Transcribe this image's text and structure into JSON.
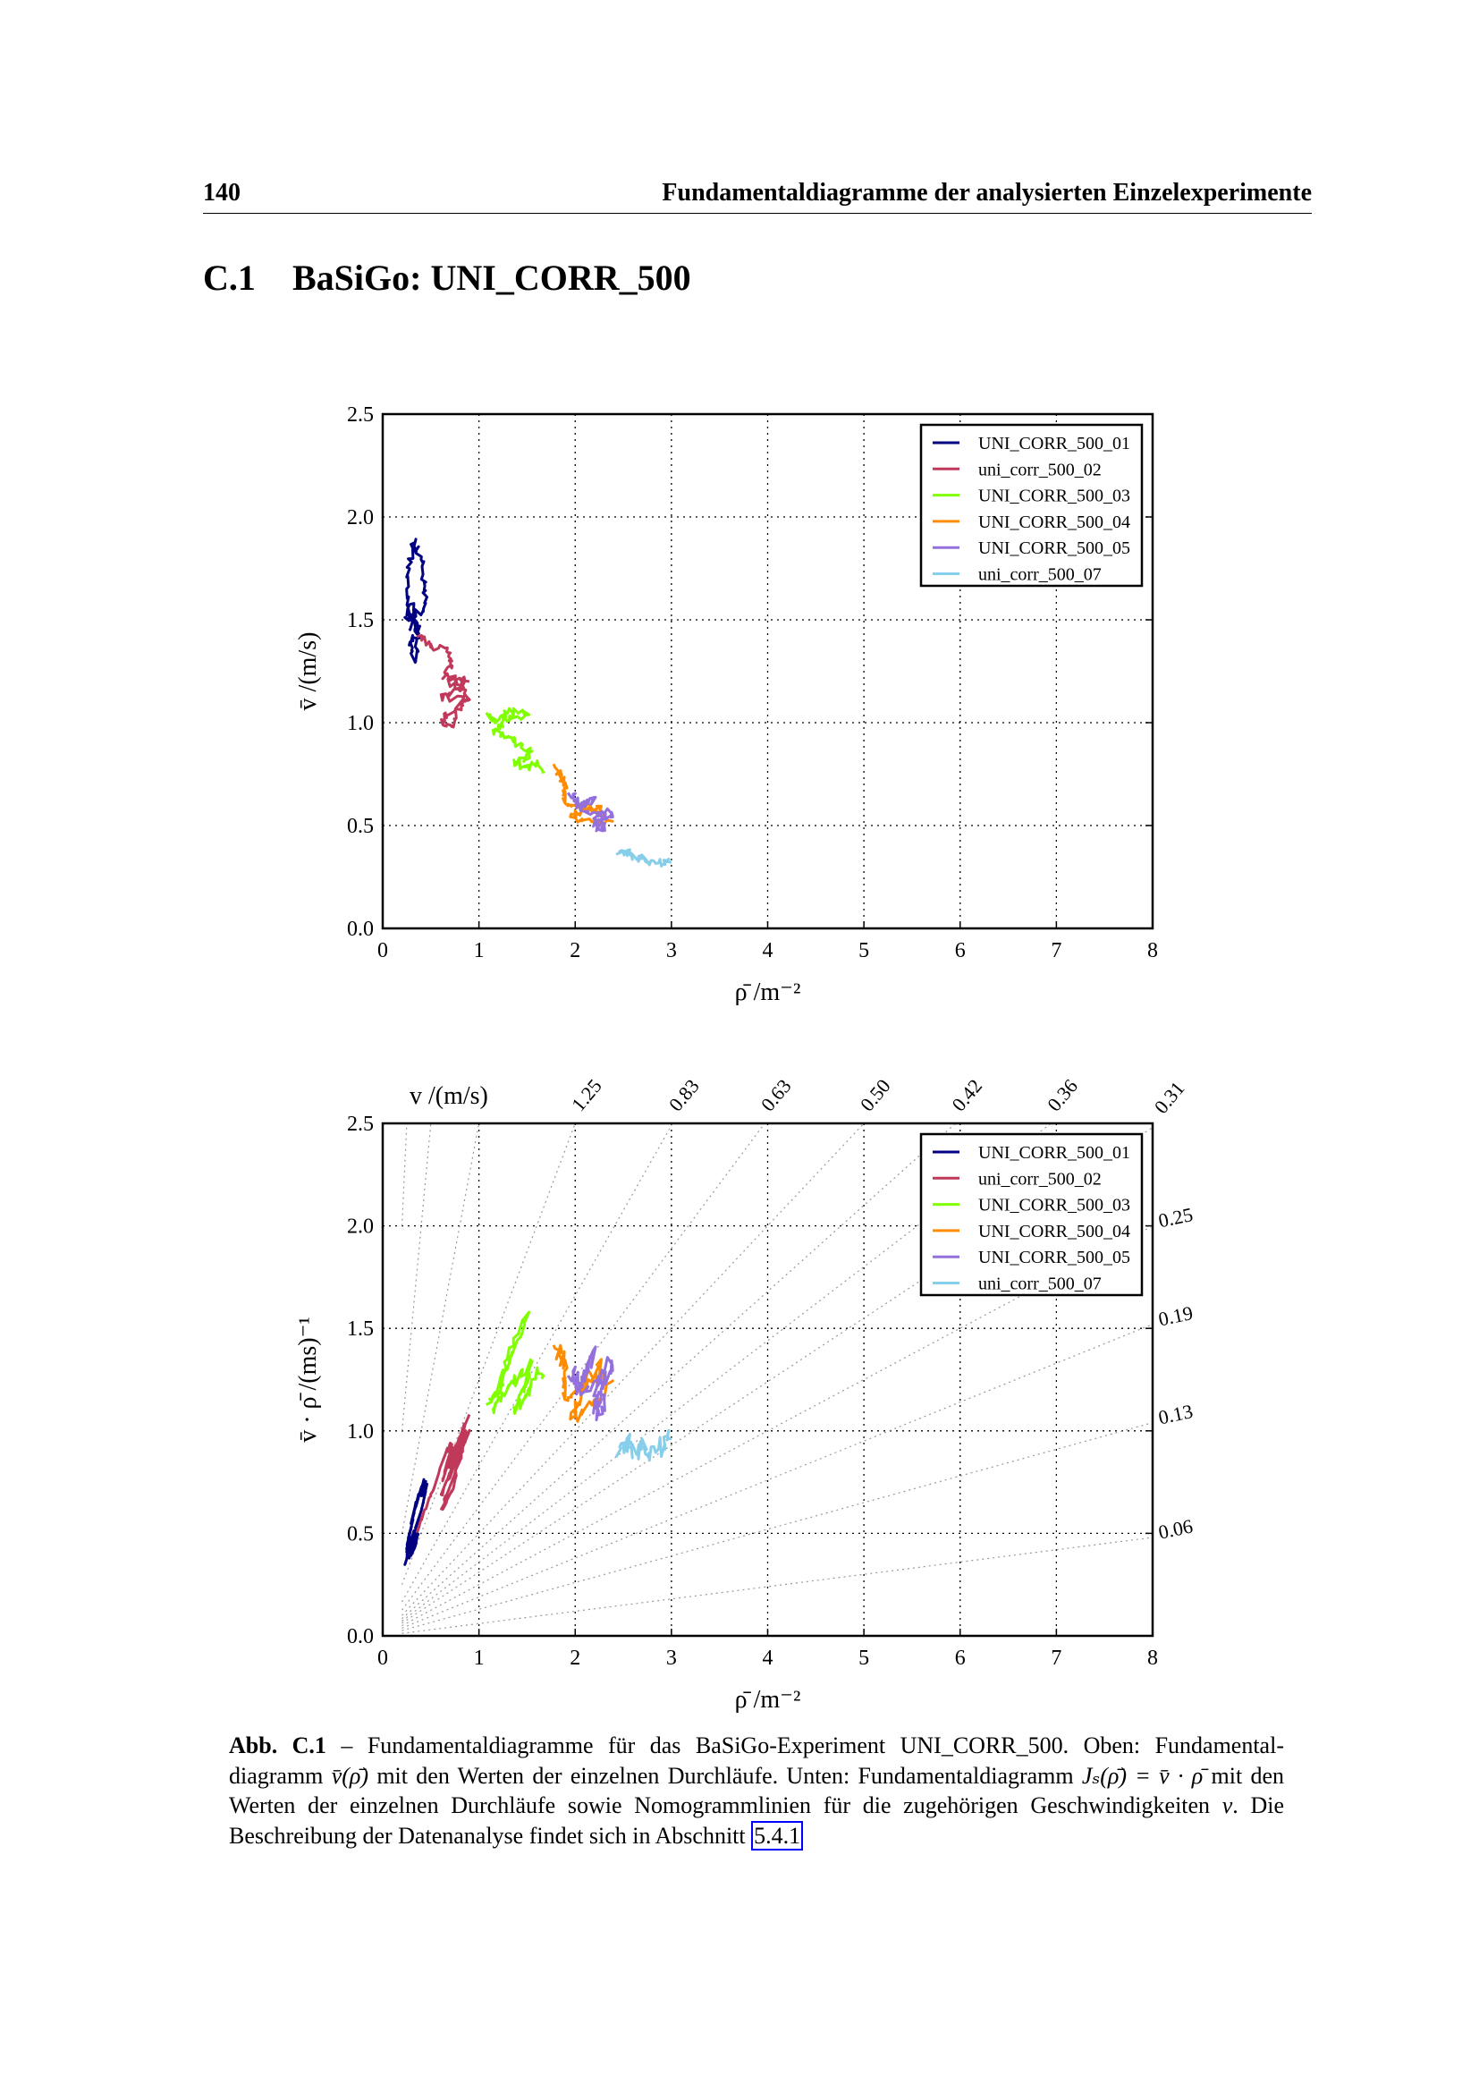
{
  "header": {
    "page_number": "140",
    "running_title": "Fundamentaldiagramme der analysierten Einzelexperimente"
  },
  "section": {
    "number": "C.1",
    "title": "BaSiGo: UNI_CORR_500"
  },
  "colors": {
    "UNI_CORR_500_01": "#000080",
    "uni_corr_500_02": "#c0395a",
    "UNI_CORR_500_03": "#7fff00",
    "UNI_CORR_500_04": "#ff8c00",
    "UNI_CORR_500_05": "#9370db",
    "uni_corr_500_07": "#87ceeb"
  },
  "chart_data": [
    {
      "type": "line",
      "title": "",
      "xlabel": "ρ̄   /m⁻²",
      "ylabel": "v̄   /(m/s)",
      "xlim": [
        0,
        8
      ],
      "ylim": [
        0,
        2.5
      ],
      "xticks": [
        "0",
        "1",
        "2",
        "3",
        "4",
        "5",
        "6",
        "7",
        "8"
      ],
      "yticks": [
        "0.0",
        "0.5",
        "1.0",
        "1.5",
        "2.0",
        "2.5"
      ],
      "grid": true,
      "legend_position": "top-right",
      "legend": [
        "UNI_CORR_500_01",
        "uni_corr_500_02",
        "UNI_CORR_500_03",
        "UNI_CORR_500_04",
        "UNI_CORR_500_05",
        "uni_corr_500_07"
      ],
      "series": [
        {
          "name": "UNI_CORR_500_01",
          "points": [
            [
              0.3,
              1.45
            ],
            [
              0.26,
              1.62
            ],
            [
              0.28,
              1.78
            ],
            [
              0.32,
              1.88
            ],
            [
              0.4,
              1.78
            ],
            [
              0.45,
              1.65
            ],
            [
              0.42,
              1.55
            ],
            [
              0.25,
              1.5
            ],
            [
              0.3,
              1.58
            ],
            [
              0.36,
              1.42
            ],
            [
              0.28,
              1.4
            ],
            [
              0.33,
              1.3
            ],
            [
              0.38,
              1.45
            ],
            [
              0.3,
              1.52
            ],
            [
              0.38,
              1.43
            ]
          ]
        },
        {
          "name": "uni_corr_500_02",
          "points": [
            [
              0.38,
              1.43
            ],
            [
              0.5,
              1.37
            ],
            [
              0.7,
              1.35
            ],
            [
              0.72,
              1.28
            ],
            [
              0.62,
              1.22
            ],
            [
              0.85,
              1.22
            ],
            [
              0.78,
              1.15
            ],
            [
              0.6,
              1.12
            ],
            [
              0.9,
              1.12
            ],
            [
              0.68,
              1.05
            ],
            [
              0.62,
              1.0
            ],
            [
              0.72,
              0.98
            ],
            [
              0.8,
              1.07
            ],
            [
              0.88,
              1.15
            ],
            [
              0.7,
              1.2
            ],
            [
              0.9,
              1.2
            ]
          ]
        },
        {
          "name": "UNI_CORR_500_03",
          "points": [
            [
              1.1,
              1.03
            ],
            [
              1.2,
              1.01
            ],
            [
              1.3,
              1.06
            ],
            [
              1.5,
              1.04
            ],
            [
              1.35,
              1.03
            ],
            [
              1.25,
              1.01
            ],
            [
              1.15,
              0.96
            ],
            [
              1.3,
              0.93
            ],
            [
              1.4,
              0.9
            ],
            [
              1.55,
              0.85
            ],
            [
              1.42,
              0.82
            ],
            [
              1.35,
              0.8
            ],
            [
              1.5,
              0.78
            ],
            [
              1.62,
              0.8
            ],
            [
              1.65,
              0.76
            ]
          ]
        },
        {
          "name": "UNI_CORR_500_04",
          "points": [
            [
              1.8,
              0.79
            ],
            [
              1.85,
              0.73
            ],
            [
              1.9,
              0.69
            ],
            [
              1.88,
              0.62
            ],
            [
              2.0,
              0.6
            ],
            [
              2.25,
              0.58
            ],
            [
              2.3,
              0.56
            ],
            [
              2.05,
              0.57
            ],
            [
              1.95,
              0.54
            ],
            [
              2.15,
              0.52
            ],
            [
              2.4,
              0.52
            ]
          ]
        },
        {
          "name": "UNI_CORR_500_05",
          "points": [
            [
              1.95,
              0.66
            ],
            [
              2.05,
              0.61
            ],
            [
              2.2,
              0.62
            ],
            [
              2.0,
              0.6
            ],
            [
              2.15,
              0.57
            ],
            [
              2.4,
              0.56
            ],
            [
              2.3,
              0.53
            ],
            [
              2.2,
              0.5
            ],
            [
              2.3,
              0.48
            ],
            [
              2.2,
              0.55
            ],
            [
              2.35,
              0.54
            ]
          ]
        },
        {
          "name": "uni_corr_500_07",
          "points": [
            [
              2.45,
              0.37
            ],
            [
              2.55,
              0.37
            ],
            [
              2.6,
              0.35
            ],
            [
              2.7,
              0.34
            ],
            [
              2.78,
              0.33
            ],
            [
              2.9,
              0.32
            ],
            [
              3.0,
              0.32
            ]
          ]
        }
      ]
    },
    {
      "type": "line",
      "title": "",
      "xlabel": "ρ̄   /m⁻²",
      "ylabel": "v̄ · ρ̄   /(ms)⁻¹",
      "top_label": "v   /(m/s)",
      "xlim": [
        0,
        8
      ],
      "ylim": [
        0,
        2.5
      ],
      "xticks": [
        "0",
        "1",
        "2",
        "3",
        "4",
        "5",
        "6",
        "7",
        "8"
      ],
      "yticks": [
        "0.0",
        "0.5",
        "1.0",
        "1.5",
        "2.0",
        "2.5"
      ],
      "grid": true,
      "legend_position": "top-right",
      "legend": [
        "UNI_CORR_500_01",
        "uni_corr_500_02",
        "UNI_CORR_500_03",
        "UNI_CORR_500_04",
        "UNI_CORR_500_05",
        "uni_corr_500_07"
      ],
      "nomogram": {
        "top_labels": [
          {
            "v": 1.25,
            "label": "1.25"
          },
          {
            "v": 0.83,
            "label": "0.83"
          },
          {
            "v": 0.63,
            "label": "0.63"
          },
          {
            "v": 0.5,
            "label": "0.50"
          },
          {
            "v": 0.42,
            "label": "0.42"
          },
          {
            "v": 0.36,
            "label": "0.36"
          },
          {
            "v": 0.31,
            "label": "0.31"
          }
        ],
        "right_labels": [
          {
            "v": 0.25,
            "label": "0.25"
          },
          {
            "v": 0.19,
            "label": "0.19"
          },
          {
            "v": 0.13,
            "label": "0.13"
          },
          {
            "v": 0.06,
            "label": "0.06"
          }
        ],
        "extra_lines_v": [
          2.5,
          5.0,
          10.0
        ]
      }
    }
  ],
  "caption": {
    "label": "Abb. C.1",
    "text1": " – Fundamentaldiagramme für das BaSiGo-Experiment UNI_CORR_500. Oben: Fundamental­diagramm ",
    "math1": "v̄(ρ̄)",
    "text2": " mit den Werten der einzelnen Durchläufe. Unten: Fundamentaldiagramm ",
    "math2": "Jₛ(ρ̄) = v̄ · ρ̄",
    "text3": " mit den Werten der einzelnen Durchläufe sowie Nomogrammlinien für die zugehörigen Geschwindigkeiten ",
    "math3": "v",
    "text4": ". Die Beschreibung der Datenanalyse findet sich in Abschnitt ",
    "ref": "5.4.1"
  }
}
